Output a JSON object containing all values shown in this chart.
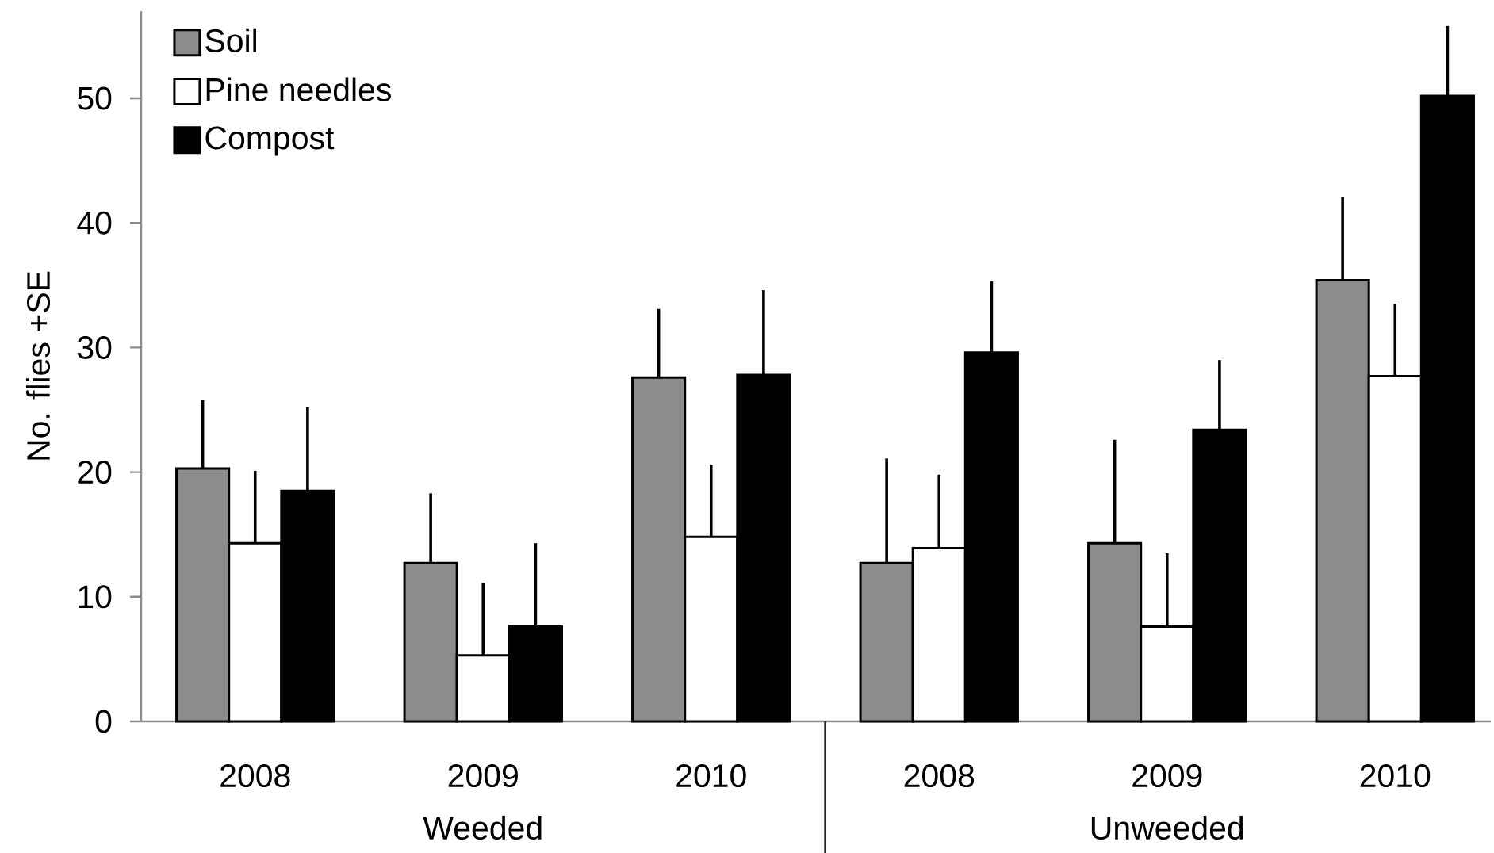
{
  "chart_data": {
    "type": "bar",
    "ylabel": "No. flies +SE",
    "categories": [
      "2008",
      "2009",
      "2010",
      "2008",
      "2009",
      "2010"
    ],
    "series": [
      {
        "name": "Soil",
        "color": "#8c8c8c",
        "values": [
          20.3,
          12.7,
          27.6,
          12.7,
          14.3,
          35.4
        ],
        "errors": [
          [
            20.3,
            25.8
          ],
          [
            12.7,
            18.3
          ],
          [
            27.6,
            33.1
          ],
          [
            12.7,
            21.1
          ],
          [
            14.3,
            22.6
          ],
          [
            35.4,
            42.1
          ]
        ]
      },
      {
        "name": "Pine needles",
        "color": "#ffffff",
        "values": [
          14.3,
          5.3,
          14.8,
          13.9,
          7.6,
          27.7
        ],
        "errors": [
          [
            14.3,
            20.1
          ],
          [
            5.3,
            11.1
          ],
          [
            14.8,
            20.6
          ],
          [
            13.9,
            19.8
          ],
          [
            7.6,
            13.5
          ],
          [
            27.7,
            33.5
          ]
        ]
      },
      {
        "name": "Compost",
        "color": "#000000",
        "values": [
          18.5,
          7.6,
          27.8,
          29.6,
          23.4,
          50.2
        ],
        "errors": [
          [
            18.5,
            25.2
          ],
          [
            7.6,
            14.3
          ],
          [
            27.8,
            34.6
          ],
          [
            29.6,
            35.3
          ],
          [
            23.4,
            29.0
          ],
          [
            50.2,
            55.8
          ]
        ]
      }
    ],
    "ylim": [
      0,
      57
    ],
    "yticks": [
      0,
      10,
      20,
      30,
      40,
      50
    ],
    "legend": "top left",
    "annotations": [
      "Weeded",
      "Unweeded"
    ]
  }
}
